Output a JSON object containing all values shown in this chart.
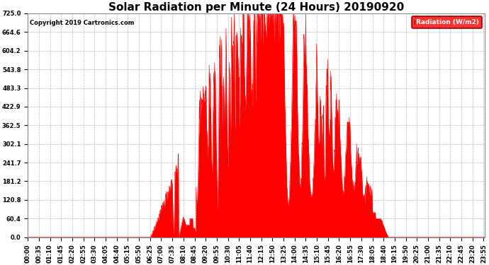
{
  "title": "Solar Radiation per Minute (24 Hours) 20190920",
  "copyright_text": "Copyright 2019 Cartronics.com",
  "legend_label": "Radiation (W/m2)",
  "ylabel_values": [
    0.0,
    60.4,
    120.8,
    181.2,
    241.7,
    302.1,
    362.5,
    422.9,
    483.3,
    543.8,
    604.2,
    664.6,
    725.0
  ],
  "ymax": 725.0,
  "ymin": 0.0,
  "fill_color": "#FF0000",
  "line_color": "#FF0000",
  "background_color": "#FFFFFF",
  "grid_color": "#AAAAAA",
  "dashed_zero_color": "#FF0000",
  "title_fontsize": 11,
  "tick_fontsize": 6,
  "num_minutes": 1440,
  "xtick_interval": 35,
  "x_labels": [
    "00:00",
    "00:35",
    "01:10",
    "01:45",
    "02:20",
    "02:55",
    "03:30",
    "04:05",
    "04:40",
    "05:15",
    "05:50",
    "06:25",
    "07:00",
    "07:35",
    "08:10",
    "08:45",
    "09:20",
    "09:55",
    "10:30",
    "11:05",
    "11:40",
    "12:15",
    "12:50",
    "13:25",
    "14:00",
    "14:35",
    "15:10",
    "15:45",
    "16:20",
    "16:55",
    "17:30",
    "18:05",
    "18:40",
    "19:15",
    "19:50",
    "20:25",
    "21:00",
    "21:35",
    "22:10",
    "22:45",
    "23:20",
    "23:55"
  ],
  "sunrise_minute": 385,
  "sunset_minute": 1135,
  "peak_minute": 760,
  "peak_val": 725.0
}
